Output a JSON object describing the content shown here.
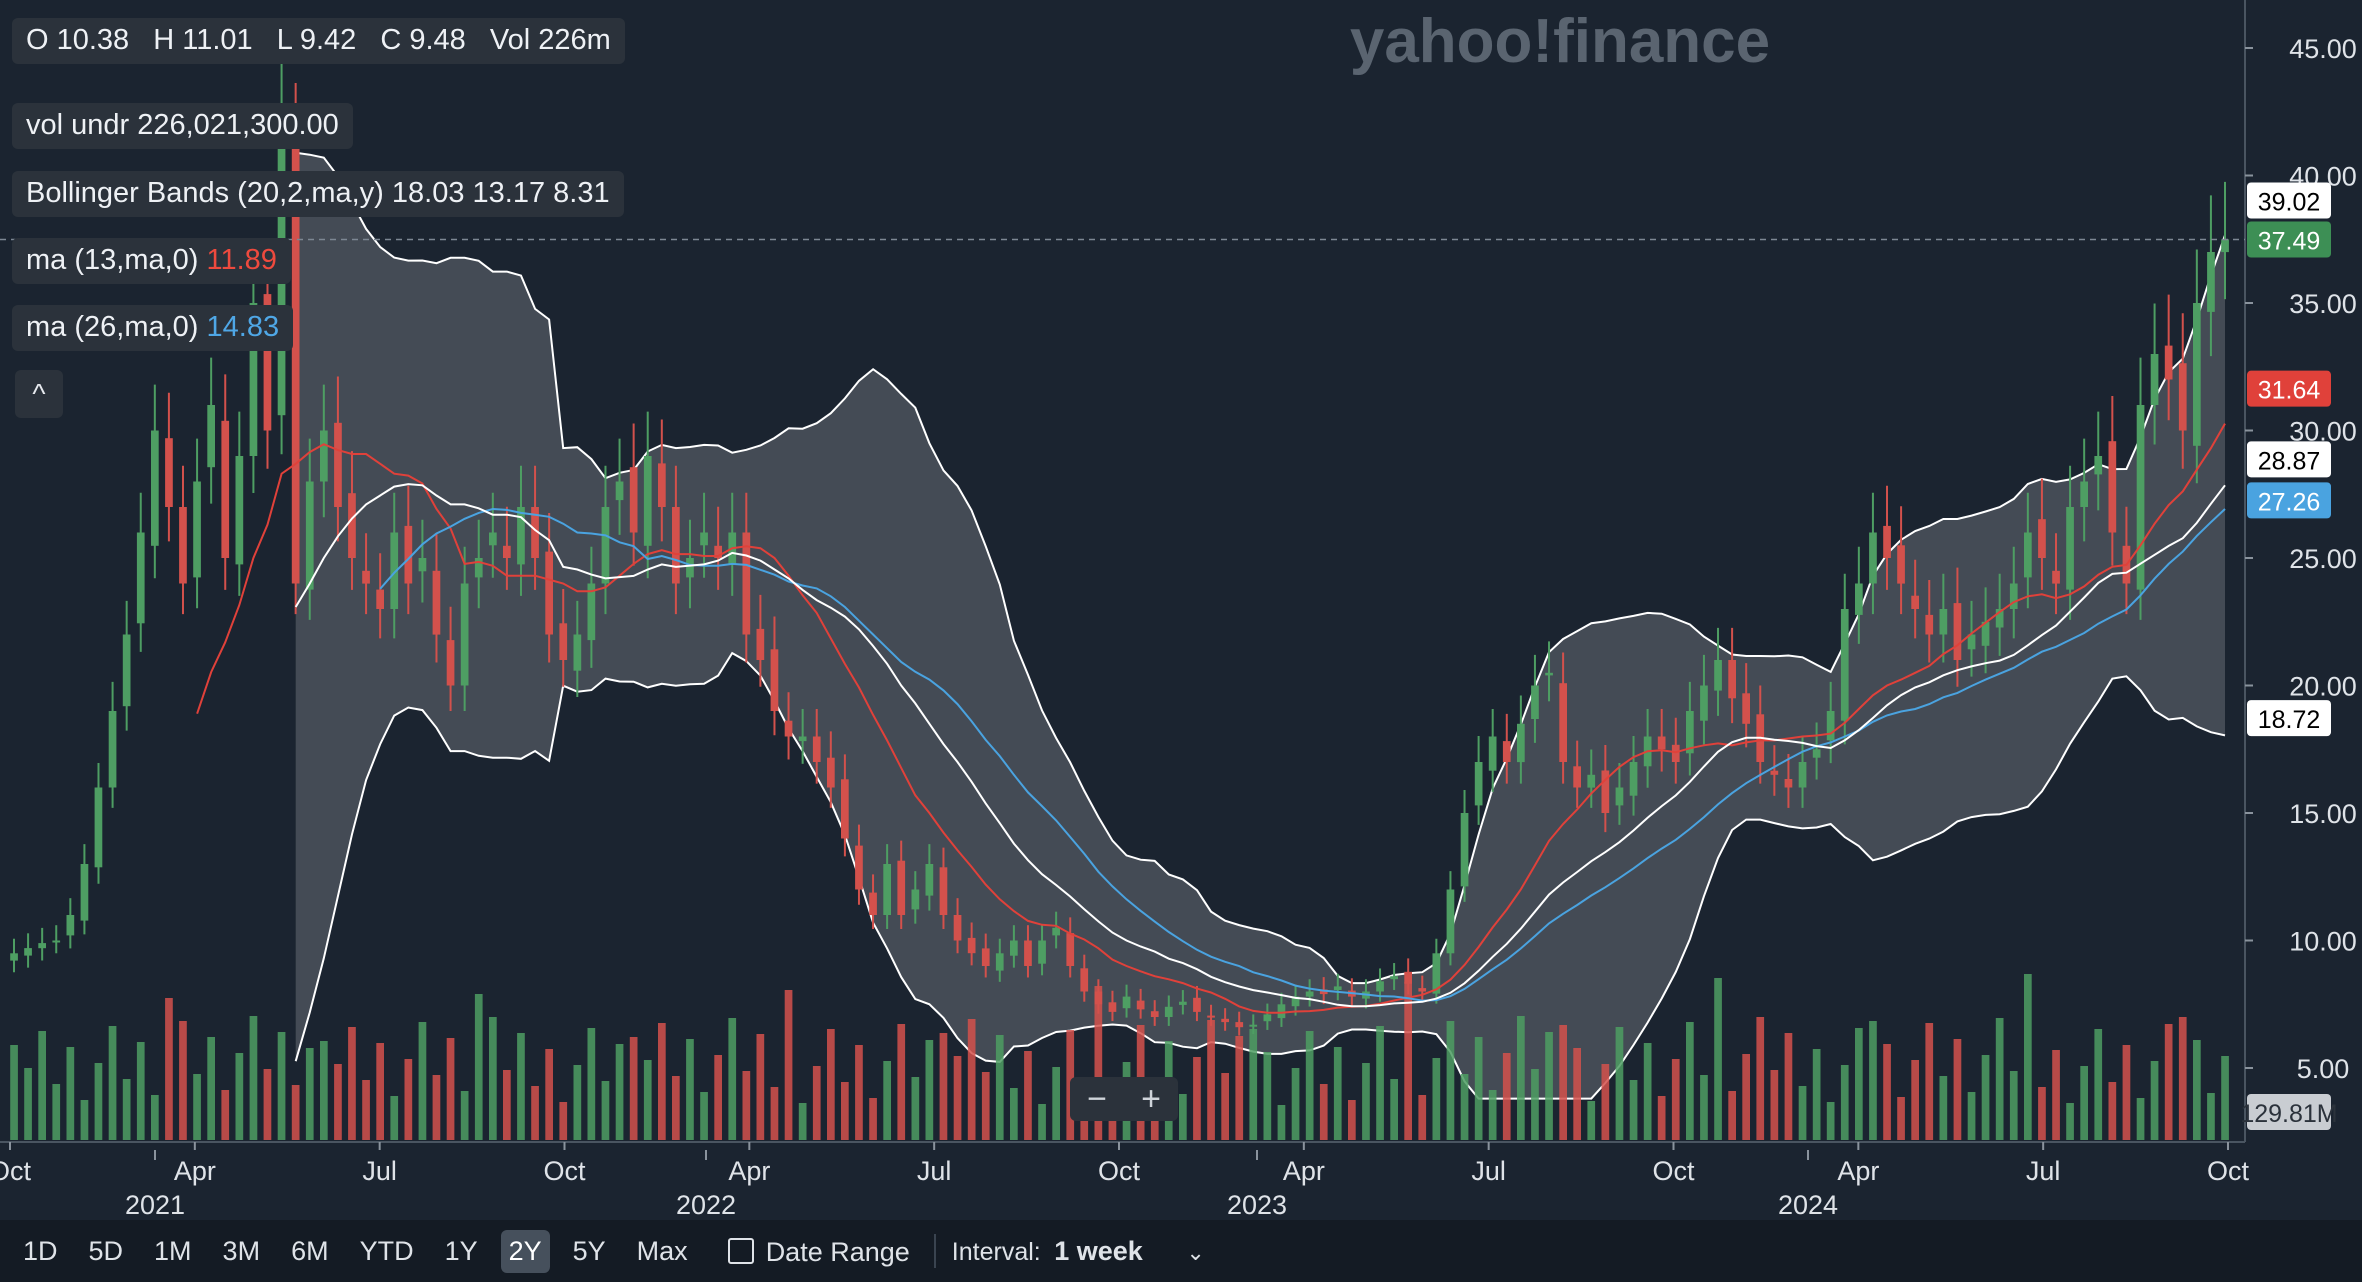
{
  "header": {
    "ohlc": {
      "o": "O 10.38",
      "h": "H 11.01",
      "l": "L 9.42",
      "c": "C 9.48",
      "vol": "Vol 226m"
    },
    "vol_undr": "vol undr  226,021,300.00",
    "bollinger": "Bollinger Bands (20,2,ma,y)  18.03 13.17 8.31",
    "ma13_label": "ma (13,ma,0)",
    "ma13_value": "11.89",
    "ma26_label": "ma (26,ma,0)",
    "ma26_value": "14.83",
    "collapse_icon": "^"
  },
  "watermark": "yahoo!finance",
  "zoom": {
    "minus": "−",
    "plus": "+"
  },
  "toolbar": {
    "ranges": [
      "1D",
      "5D",
      "1M",
      "3M",
      "6M",
      "YTD",
      "1Y",
      "2Y",
      "5Y",
      "Max"
    ],
    "active": "2Y",
    "date_range": "Date Range",
    "interval_label": "Interval:",
    "interval_value": "1 week",
    "chevron_icon": "chevron-down-icon",
    "calendar_icon": "calendar-icon"
  },
  "colors": {
    "up": "#4e9e63",
    "down": "#d3514c",
    "ma13": "#e0413a",
    "ma26": "#4aa3e0",
    "band": "#ffffff",
    "background": "#1b2430"
  },
  "price_tags": [
    {
      "value": "39.02",
      "price": 39.02,
      "bg": "#ffffff",
      "fg": "#000000"
    },
    {
      "value": "37.49",
      "price": 37.49,
      "bg": "#3d8f55",
      "fg": "#ffffff"
    },
    {
      "value": "31.64",
      "price": 31.64,
      "bg": "#e0413a",
      "fg": "#ffffff"
    },
    {
      "value": "28.87",
      "price": 28.87,
      "bg": "#ffffff",
      "fg": "#000000"
    },
    {
      "value": "27.26",
      "price": 27.26,
      "bg": "#4aa3e0",
      "fg": "#ffffff"
    },
    {
      "value": "18.72",
      "price": 18.72,
      "bg": "#ffffff",
      "fg": "#000000"
    },
    {
      "value": "129.81M",
      "price": null,
      "bg": "#c9cdd2",
      "fg": "#2b323b"
    }
  ],
  "chart_data": {
    "type": "candlestick",
    "title": "",
    "y_ticks": [
      "45.00",
      "40.00",
      "35.00",
      "30.00",
      "25.00",
      "20.00",
      "15.00",
      "10.00",
      "5.00"
    ],
    "y_tick_values": [
      45,
      40,
      35,
      30,
      25,
      20,
      15,
      10,
      5
    ],
    "ylim": [
      3.5,
      45.9
    ],
    "x_ticks": [
      "Oct",
      "Apr",
      "Jul",
      "Oct",
      "Apr",
      "Jul",
      "Oct",
      "Apr",
      "Jul",
      "Oct",
      "Apr",
      "Jul",
      "Oct"
    ],
    "year_labels": [
      "2021",
      "2022",
      "2023",
      "2024"
    ],
    "x_range": [
      "2020-10",
      "2024-10"
    ],
    "last_price": 37.49,
    "series": [
      {
        "name": "close",
        "weeks": [
          9.5,
          9.7,
          9.9,
          10,
          11,
          13,
          16,
          19,
          22,
          26,
          30,
          27,
          24,
          28,
          31,
          25,
          29,
          35,
          30,
          42,
          24,
          28,
          30,
          27,
          25,
          24,
          23,
          26,
          24,
          25,
          22,
          20,
          24,
          25,
          26,
          25,
          27,
          25,
          22,
          21,
          22,
          24,
          27,
          28,
          26,
          29,
          27,
          24,
          25,
          26,
          25,
          26,
          22,
          21,
          19,
          18,
          18,
          17,
          16,
          14,
          12,
          11,
          13,
          11,
          12,
          13,
          11,
          10,
          9.5,
          9,
          9.5,
          10,
          9,
          10,
          10.5,
          9,
          8,
          7.5,
          7.2,
          7.8,
          7.3,
          7,
          7.4,
          7.6,
          7.2,
          7,
          6.8,
          6.6,
          6.7,
          7.1,
          7.5,
          7.8,
          8,
          7.9,
          8.2,
          7.8,
          8,
          8.4,
          8.6,
          8.3,
          8,
          9.5,
          12,
          15,
          17,
          18,
          17,
          18.5,
          20,
          20.5,
          17,
          16,
          16.5,
          15,
          16,
          17,
          18,
          17.5,
          17,
          19,
          20,
          21,
          19.5,
          18.5,
          17,
          16.5,
          16,
          17,
          17.5,
          19,
          23,
          24,
          26,
          25,
          24,
          23,
          22,
          23,
          21,
          22,
          22.5,
          23,
          24,
          26,
          25,
          24,
          27,
          28,
          29,
          26,
          24,
          31,
          33,
          32,
          30,
          35,
          37,
          37.5
        ]
      },
      {
        "name": "volume",
        "values": []
      }
    ]
  }
}
